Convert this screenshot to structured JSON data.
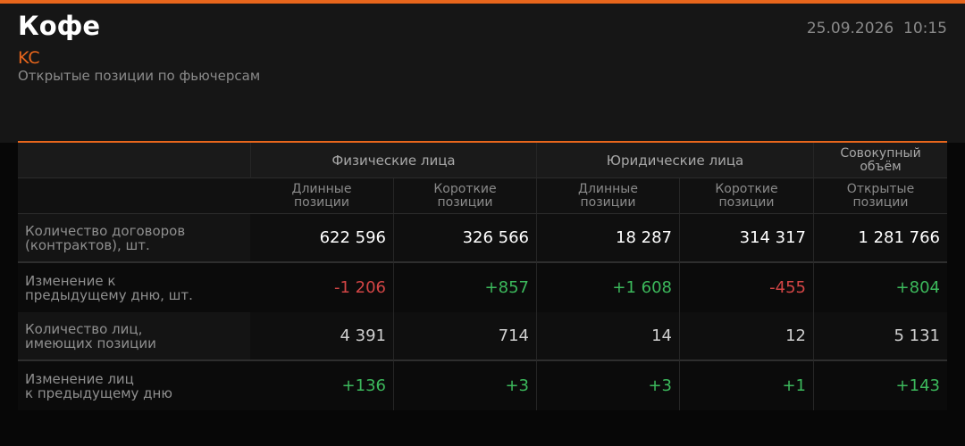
{
  "header": {
    "title": "Кофе",
    "ticker": "KC",
    "subtitle": "Открытые позиции по фьючерсам",
    "datetime": "25.09.2026  10:15"
  },
  "table": {
    "groups": [
      "Физические лица",
      "Юридические лица",
      "Совокупный объём"
    ],
    "columns": [
      "Длинные позиции",
      "Короткие позиции",
      "Длинные позиции",
      "Короткие позиции",
      "Открытые позиции"
    ],
    "rows": [
      {
        "label": "Количество договоров\n(контрактов), шт.",
        "cells": [
          "622 596",
          "326 566",
          "18 287",
          "314 317",
          "1 281 766"
        ]
      },
      {
        "label": "Изменение к\nпредыдущему дню, шт.",
        "cells": [
          "-1 206",
          "+857",
          "+1 608",
          "-455",
          "+804"
        ]
      },
      {
        "label": "Количество лиц,\nимеющих позиции",
        "cells": [
          "4 391",
          "714",
          "14",
          "12",
          "5 131"
        ]
      },
      {
        "label": "Изменение лиц\nк предыдущему дню",
        "cells": [
          "+136",
          "+3",
          "+3",
          "+1",
          "+143"
        ]
      }
    ]
  }
}
